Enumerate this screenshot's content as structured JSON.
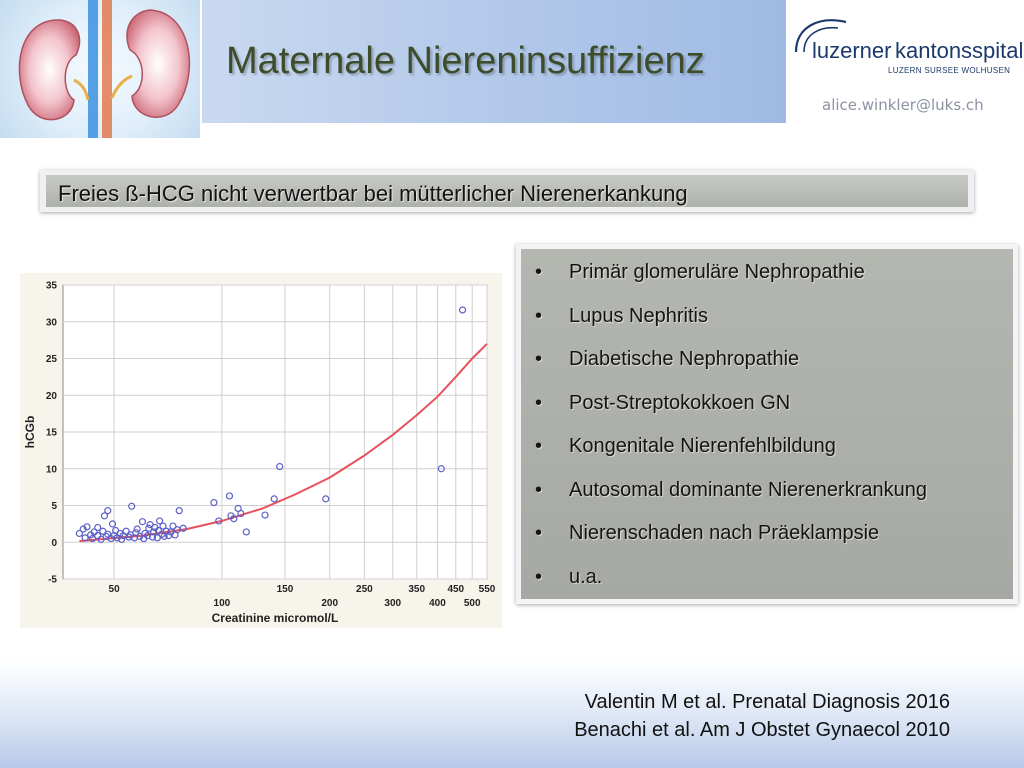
{
  "title": "Maternale Niereninsuffizienz",
  "logo": {
    "word1": "luzerner",
    "word2": "kantonsspital",
    "sub": "LUZERN  SURSEE  WOLHUSEN"
  },
  "email": "alice.winkler@luks.ch",
  "headline": "Freies ß-HCG nicht verwertbar bei mütterlicher Nierenerkankung",
  "list": {
    "bullet": "•",
    "items": [
      "Primär glomeruläre Nephropathie",
      "Lupus Nephritis",
      "Diabetische Nephropathie",
      "Post-Streptokokkoen GN",
      "Kongenitale Nierenfehlbildung",
      "Autosomal dominante Nierenerkrankung",
      "Nierenschaden nach Präeklampsie",
      "u.a."
    ]
  },
  "references": [
    "Valentin M et al. Prenatal Diagnosis 2016",
    "Benachi et al. Am J Obstet Gynaecol 2010"
  ],
  "chart_data": {
    "type": "scatter",
    "xlabel": "Creatinine micromol/L",
    "ylabel": "hCGb",
    "xscale": "log",
    "xlim": [
      36,
      550
    ],
    "ylim": [
      -5,
      35
    ],
    "yticks": [
      -5,
      0,
      5,
      10,
      15,
      20,
      25,
      30,
      35
    ],
    "xticks_top": [
      50,
      150,
      250,
      350,
      450,
      550
    ],
    "xticks_bottom": [
      100,
      200,
      300,
      400,
      500
    ],
    "xtick_labels_top": [
      "50",
      "150",
      "250",
      "350",
      "450",
      "550"
    ],
    "xtick_labels_bottom": [
      "100",
      "200",
      "300",
      "400",
      "500"
    ],
    "ytick_labels": [
      "-5",
      "0",
      "5",
      "10",
      "15",
      "20",
      "25",
      "30",
      "35"
    ],
    "grid": true,
    "colors": {
      "points": "#5b60c8",
      "fit": "#e8505b",
      "background": "#f7f4ec"
    },
    "points": [
      [
        40,
        1.2
      ],
      [
        41,
        1.8
      ],
      [
        41.5,
        0.6
      ],
      [
        42,
        2.1
      ],
      [
        43,
        1.0
      ],
      [
        43.5,
        0.5
      ],
      [
        44,
        1.4
      ],
      [
        45,
        0.9
      ],
      [
        45,
        2.0
      ],
      [
        46,
        0.4
      ],
      [
        46.5,
        1.5
      ],
      [
        47,
        3.6
      ],
      [
        47.5,
        0.8
      ],
      [
        48,
        4.3
      ],
      [
        48,
        1.1
      ],
      [
        49,
        0.5
      ],
      [
        49.5,
        2.5
      ],
      [
        50,
        0.9
      ],
      [
        50.5,
        1.6
      ],
      [
        51,
        0.6
      ],
      [
        52,
        1.2
      ],
      [
        52.5,
        0.4
      ],
      [
        53,
        0.9
      ],
      [
        54,
        1.5
      ],
      [
        55,
        0.7
      ],
      [
        55.5,
        1.0
      ],
      [
        56,
        4.9
      ],
      [
        57,
        0.6
      ],
      [
        57.5,
        1.3
      ],
      [
        58,
        1.8
      ],
      [
        59,
        0.8
      ],
      [
        60,
        2.8
      ],
      [
        60.5,
        0.5
      ],
      [
        61,
        1.2
      ],
      [
        62,
        0.9
      ],
      [
        62.5,
        1.9
      ],
      [
        63,
        2.4
      ],
      [
        64,
        0.7
      ],
      [
        64.5,
        1.4
      ],
      [
        65,
        2.0
      ],
      [
        66,
        0.6
      ],
      [
        66.5,
        1.6
      ],
      [
        67,
        2.9
      ],
      [
        68,
        1.1
      ],
      [
        68.5,
        2.2
      ],
      [
        69,
        0.8
      ],
      [
        70,
        1.5
      ],
      [
        71,
        0.9
      ],
      [
        72,
        1.4
      ],
      [
        73,
        2.2
      ],
      [
        74,
        1.0
      ],
      [
        75,
        1.7
      ],
      [
        76,
        4.3
      ],
      [
        78,
        1.9
      ],
      [
        95,
        5.4
      ],
      [
        98,
        2.9
      ],
      [
        105,
        6.3
      ],
      [
        106,
        3.6
      ],
      [
        108,
        3.2
      ],
      [
        111,
        4.6
      ],
      [
        113,
        3.9
      ],
      [
        117,
        1.4
      ],
      [
        132,
        3.7
      ],
      [
        140,
        5.9
      ],
      [
        145,
        10.3
      ],
      [
        195,
        5.9
      ],
      [
        410,
        10.0
      ],
      [
        470,
        31.6
      ]
    ],
    "fit_curve": [
      [
        40,
        0.15
      ],
      [
        60,
        0.9
      ],
      [
        80,
        1.8
      ],
      [
        100,
        2.9
      ],
      [
        130,
        4.6
      ],
      [
        160,
        6.5
      ],
      [
        200,
        8.8
      ],
      [
        250,
        11.8
      ],
      [
        300,
        14.6
      ],
      [
        350,
        17.3
      ],
      [
        400,
        19.8
      ],
      [
        450,
        22.5
      ],
      [
        500,
        25.0
      ],
      [
        550,
        27.0
      ]
    ]
  }
}
